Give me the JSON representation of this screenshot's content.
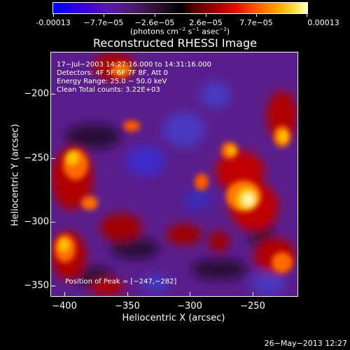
{
  "colorbar": {
    "ticks": [
      "-0.00013",
      "−7.7e−05",
      "−2.6e−05",
      "2.6e−05",
      "7.7e−05",
      "0.00013"
    ],
    "unit_main": "(photons cm",
    "unit_sup1": "−2",
    "unit_mid": " s",
    "unit_sup2": "−1",
    "unit_mid2": " asec",
    "unit_sup3": "−2",
    "unit_end": ")"
  },
  "title": "Reconstructed RHESSI Image",
  "info": {
    "line1": "17−Jul−2003 14:27:16.000 to 14:31:16.000",
    "line2": "Detectors: 4F 5F 6F 7F 8F, Att 0",
    "line3": "Energy Range: 25.0 − 50.0 keV",
    "line4": "Clean     Total counts: 3.22E+03"
  },
  "peak": "Position of Peak = [−247,−282]",
  "axes": {
    "xlabel": "Heliocentric X (arcsec)",
    "ylabel": "Heliocentric Y (arcsec)",
    "xticks": [
      "−400",
      "−350",
      "−300",
      "−250"
    ],
    "yticks": [
      "−200",
      "−250",
      "−300",
      "−350"
    ]
  },
  "date": "26−May−2013 12:27"
}
